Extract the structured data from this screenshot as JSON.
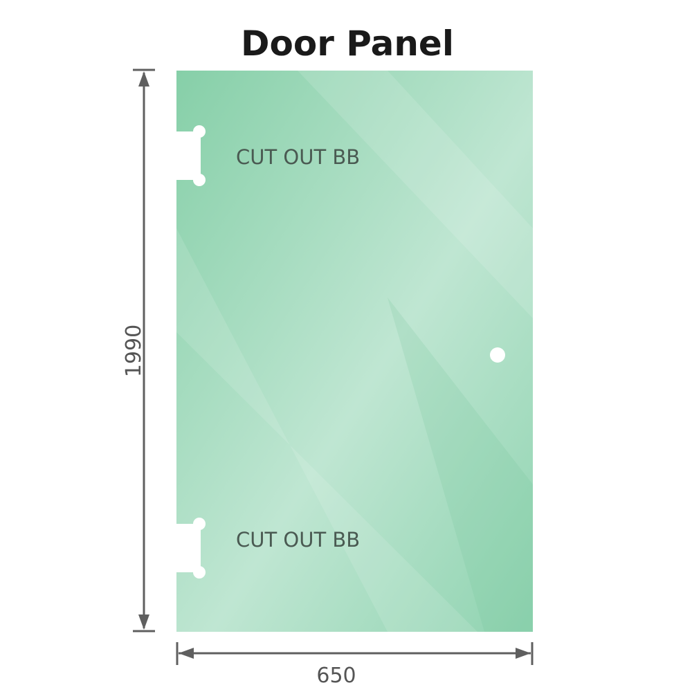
{
  "title": "Door Panel",
  "cutouts": [
    {
      "label": "CUT OUT BB"
    },
    {
      "label": "CUT OUT BB"
    }
  ],
  "dimensions": {
    "height": "1990",
    "width": "650"
  },
  "colors": {
    "glass": "#86cfa8",
    "glass_light": "#bfe6d2",
    "dimension_line": "#5f5f5f"
  }
}
